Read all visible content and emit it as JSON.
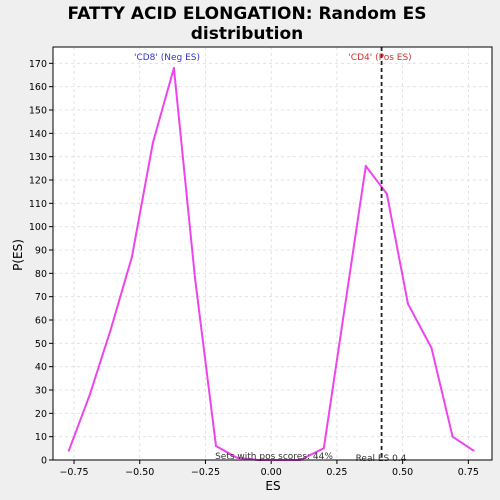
{
  "chart_data": {
    "type": "line",
    "title": "FATTY ACID ELONGATION: Random ES distribution",
    "title_lines": [
      "FATTY ACID ELONGATION: Random ES",
      "distribution"
    ],
    "xlabel": "ES",
    "ylabel": "P(ES)",
    "xlim": [
      -0.83,
      0.84
    ],
    "ylim": [
      0,
      177
    ],
    "xticks": [
      -0.75,
      -0.5,
      -0.25,
      0.0,
      0.25,
      0.5,
      0.75
    ],
    "xtick_labels": [
      "−0.75",
      "−0.50",
      "−0.25",
      "0.00",
      "0.25",
      "0.50",
      "0.75"
    ],
    "yticks": [
      0,
      10,
      20,
      30,
      40,
      50,
      60,
      70,
      80,
      90,
      100,
      110,
      120,
      130,
      140,
      150,
      160,
      170
    ],
    "grid": true,
    "series": [
      {
        "x": [
          -0.77,
          -0.69,
          -0.61,
          -0.53,
          -0.45,
          -0.37,
          -0.29,
          -0.21,
          -0.13,
          -0.05,
          0.03,
          0.11,
          0.2,
          0.36,
          0.44,
          0.52,
          0.61,
          0.69,
          0.77
        ],
        "y": [
          4,
          28,
          56,
          87,
          136,
          168,
          78,
          6,
          1,
          0,
          0,
          0,
          5,
          126,
          114,
          67,
          48,
          10,
          4
        ],
        "color": "#ee44ee"
      }
    ],
    "real_es": 0.42,
    "annotations": {
      "neg_label": "'CD8' (Neg ES)",
      "pos_label": "'CD4' (Pos ES)",
      "pos_scores": "Sets with pos scores: 44%",
      "real_es_label": "Real ES 0.4"
    },
    "colors": {
      "line": "#ee44ee",
      "neg_label": "#3333cc",
      "pos_label": "#cc3333",
      "real_es_line": "#222222",
      "grid": "#dddddd",
      "figure_bg": "#efefef",
      "plot_bg": "#ffffff"
    }
  }
}
